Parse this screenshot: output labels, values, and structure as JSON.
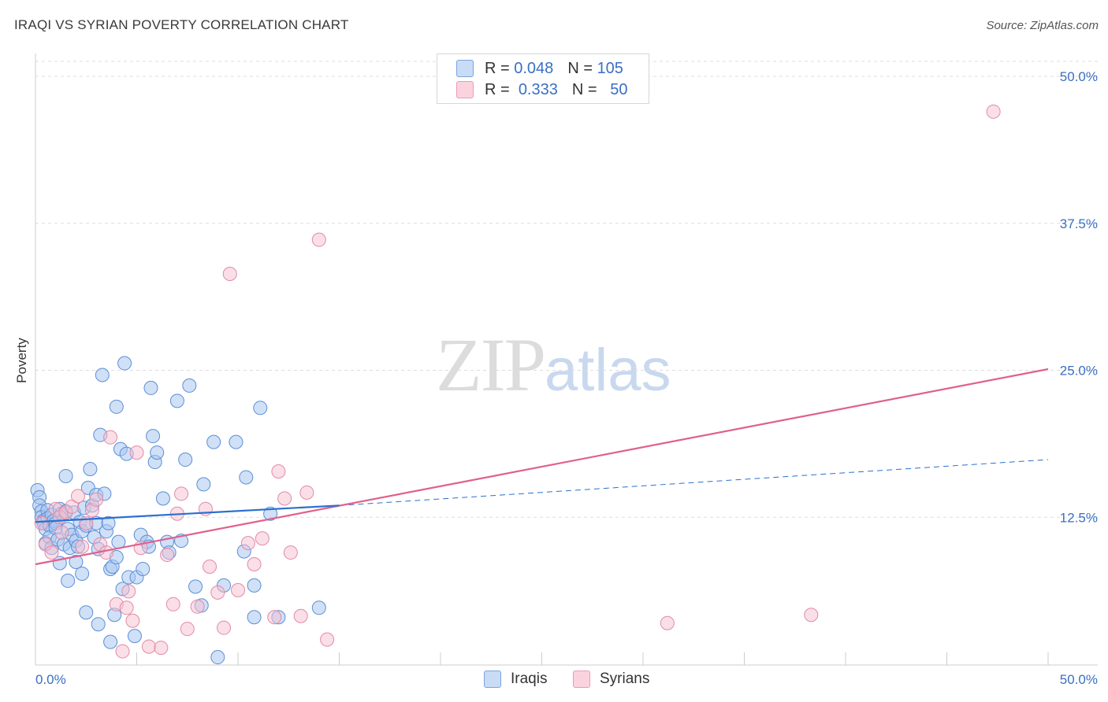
{
  "title": "IRAQI VS SYRIAN POVERTY CORRELATION CHART",
  "source": "Source: ZipAtlas.com",
  "watermark": {
    "zip": "ZIP",
    "atlas": "atlas"
  },
  "colors": {
    "iraqi_fill": "#a9c6f0",
    "iraqi_stroke": "#5b8fd6",
    "iraqi_line": "#2b6fd0",
    "syrian_fill": "#f6bfd0",
    "syrian_stroke": "#e28aa8",
    "syrian_line": "#e0608c",
    "tick_label": "#3a6fc4",
    "grid": "#dddddd"
  },
  "legend": {
    "iraqis": {
      "r_label": "R =",
      "r_value": "0.048",
      "n_label": "N =",
      "n_value": "105"
    },
    "syrians": {
      "r_label": "R =",
      "r_value": "0.333",
      "n_label": "N =",
      "n_value": "50"
    }
  },
  "bottom_legend": {
    "iraqis": "Iraqis",
    "syrians": "Syrians"
  },
  "chart_data": {
    "type": "scatter",
    "title": "IRAQI VS SYRIAN POVERTY CORRELATION CHART",
    "xlabel": "",
    "ylabel": "Poverty",
    "xlim": [
      0,
      50
    ],
    "ylim": [
      0,
      51.5
    ],
    "x_tick_labels": {
      "min": "0.0%",
      "max": "50.0%"
    },
    "y_ticks": [
      12.5,
      25.0,
      37.5,
      50.0
    ],
    "y_tick_labels": [
      "12.5%",
      "25.0%",
      "37.5%",
      "50.0%"
    ],
    "series": [
      {
        "name": "Iraqis",
        "r": 0.048,
        "n": 105,
        "trend_solid": {
          "x": [
            0,
            15
          ],
          "y": [
            12.1,
            13.5
          ]
        },
        "trend_dashed": {
          "x": [
            15,
            50
          ],
          "y": [
            13.5,
            17.4
          ]
        },
        "points": [
          [
            0.1,
            14.8
          ],
          [
            0.2,
            14.2
          ],
          [
            0.2,
            13.5
          ],
          [
            0.3,
            13.0
          ],
          [
            0.3,
            12.5
          ],
          [
            0.4,
            12.2
          ],
          [
            0.4,
            12.0
          ],
          [
            0.5,
            11.5
          ],
          [
            0.5,
            10.3
          ],
          [
            0.6,
            13.1
          ],
          [
            0.6,
            12.4
          ],
          [
            0.7,
            11.8
          ],
          [
            0.7,
            10.8
          ],
          [
            0.8,
            12.7
          ],
          [
            0.8,
            9.9
          ],
          [
            0.9,
            12.2
          ],
          [
            1.0,
            12.0
          ],
          [
            1.0,
            11.6
          ],
          [
            1.1,
            10.6
          ],
          [
            1.2,
            13.2
          ],
          [
            1.2,
            8.6
          ],
          [
            1.3,
            12.8
          ],
          [
            1.4,
            10.2
          ],
          [
            1.5,
            16.0
          ],
          [
            1.5,
            13.0
          ],
          [
            1.6,
            11.5
          ],
          [
            1.6,
            7.1
          ],
          [
            1.7,
            9.9
          ],
          [
            1.8,
            11.0
          ],
          [
            1.9,
            12.9
          ],
          [
            2.0,
            10.5
          ],
          [
            2.0,
            8.7
          ],
          [
            2.1,
            10.0
          ],
          [
            2.2,
            12.1
          ],
          [
            2.3,
            11.3
          ],
          [
            2.3,
            7.7
          ],
          [
            2.4,
            13.3
          ],
          [
            2.5,
            11.8
          ],
          [
            2.5,
            4.4
          ],
          [
            2.6,
            15.0
          ],
          [
            2.7,
            16.6
          ],
          [
            2.8,
            13.5
          ],
          [
            2.9,
            10.8
          ],
          [
            3.0,
            14.4
          ],
          [
            3.0,
            12.0
          ],
          [
            3.1,
            9.8
          ],
          [
            3.1,
            3.4
          ],
          [
            3.2,
            19.5
          ],
          [
            3.3,
            24.6
          ],
          [
            3.4,
            14.5
          ],
          [
            3.5,
            11.3
          ],
          [
            3.6,
            12.0
          ],
          [
            3.7,
            8.1
          ],
          [
            3.7,
            1.9
          ],
          [
            3.8,
            8.3
          ],
          [
            3.9,
            4.2
          ],
          [
            4.0,
            21.9
          ],
          [
            4.0,
            9.1
          ],
          [
            4.1,
            10.4
          ],
          [
            4.2,
            18.3
          ],
          [
            4.3,
            6.4
          ],
          [
            4.4,
            25.6
          ],
          [
            4.5,
            17.9
          ],
          [
            4.6,
            7.4
          ],
          [
            4.9,
            2.4
          ],
          [
            5.0,
            7.4
          ],
          [
            5.2,
            11.0
          ],
          [
            5.3,
            8.1
          ],
          [
            5.5,
            10.4
          ],
          [
            5.6,
            10.0
          ],
          [
            5.7,
            23.5
          ],
          [
            5.8,
            19.4
          ],
          [
            5.9,
            17.2
          ],
          [
            6.0,
            18.0
          ],
          [
            6.3,
            14.1
          ],
          [
            6.5,
            10.4
          ],
          [
            6.6,
            9.5
          ],
          [
            7.0,
            22.4
          ],
          [
            7.2,
            10.5
          ],
          [
            7.4,
            17.4
          ],
          [
            7.6,
            23.7
          ],
          [
            7.9,
            6.6
          ],
          [
            8.2,
            5.0
          ],
          [
            8.3,
            15.3
          ],
          [
            8.8,
            18.9
          ],
          [
            9.0,
            0.6
          ],
          [
            9.3,
            6.7
          ],
          [
            9.9,
            18.9
          ],
          [
            10.3,
            9.6
          ],
          [
            10.4,
            15.9
          ],
          [
            10.8,
            4.0
          ],
          [
            10.8,
            6.7
          ],
          [
            11.1,
            21.8
          ],
          [
            11.6,
            12.8
          ],
          [
            12.0,
            4.0
          ],
          [
            14.0,
            4.8
          ]
        ]
      },
      {
        "name": "Syrians",
        "r": 0.333,
        "n": 50,
        "trend": {
          "x": [
            0,
            50
          ],
          "y": [
            8.5,
            25.1
          ]
        },
        "points": [
          [
            0.3,
            12.0
          ],
          [
            0.5,
            10.2
          ],
          [
            0.8,
            9.5
          ],
          [
            1.0,
            13.2
          ],
          [
            1.2,
            12.5
          ],
          [
            1.3,
            11.2
          ],
          [
            1.5,
            12.9
          ],
          [
            1.8,
            13.4
          ],
          [
            2.1,
            14.3
          ],
          [
            2.3,
            10.0
          ],
          [
            2.5,
            12.0
          ],
          [
            2.8,
            13.1
          ],
          [
            3.0,
            14.0
          ],
          [
            3.2,
            10.2
          ],
          [
            3.5,
            9.5
          ],
          [
            3.7,
            19.3
          ],
          [
            4.0,
            5.1
          ],
          [
            4.3,
            1.1
          ],
          [
            4.5,
            4.8
          ],
          [
            4.6,
            6.2
          ],
          [
            4.8,
            3.7
          ],
          [
            5.0,
            18.0
          ],
          [
            5.2,
            9.9
          ],
          [
            5.6,
            1.5
          ],
          [
            6.2,
            1.4
          ],
          [
            6.5,
            9.3
          ],
          [
            6.8,
            5.1
          ],
          [
            7.0,
            12.8
          ],
          [
            7.2,
            14.5
          ],
          [
            7.5,
            3.0
          ],
          [
            8.0,
            4.9
          ],
          [
            8.4,
            13.2
          ],
          [
            8.6,
            8.3
          ],
          [
            9.0,
            6.1
          ],
          [
            9.3,
            3.1
          ],
          [
            9.6,
            33.2
          ],
          [
            10.0,
            6.3
          ],
          [
            10.5,
            10.3
          ],
          [
            10.8,
            8.5
          ],
          [
            11.2,
            10.7
          ],
          [
            11.8,
            4.0
          ],
          [
            12.0,
            16.4
          ],
          [
            12.3,
            14.1
          ],
          [
            12.6,
            9.5
          ],
          [
            13.1,
            4.1
          ],
          [
            13.4,
            14.6
          ],
          [
            14.0,
            36.1
          ],
          [
            14.4,
            2.1
          ],
          [
            31.2,
            3.5
          ],
          [
            38.3,
            4.2
          ],
          [
            47.3,
            47.0
          ]
        ]
      }
    ]
  }
}
